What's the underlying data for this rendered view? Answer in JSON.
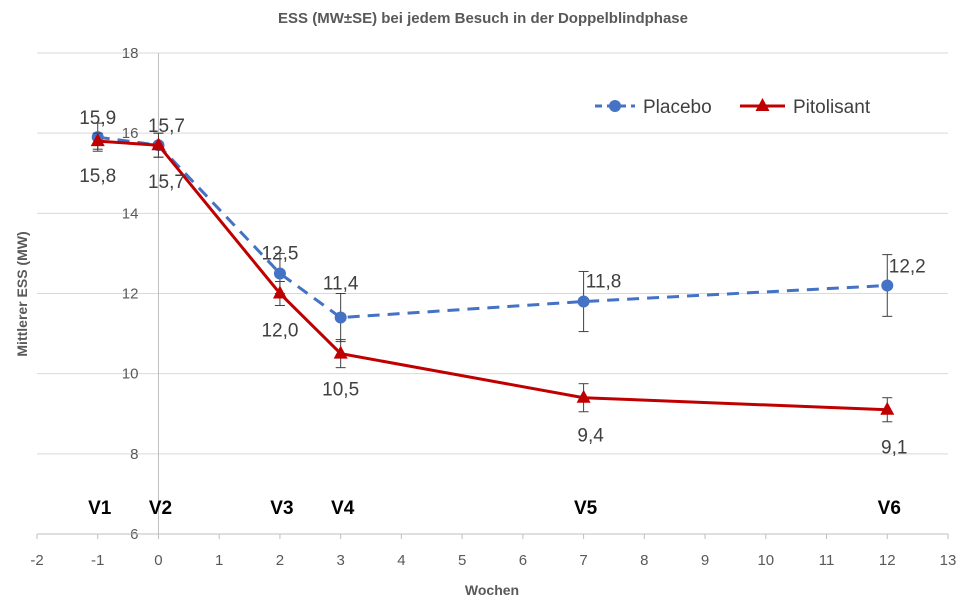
{
  "chart_data": {
    "type": "line",
    "title": "ESS (MW±SE) bei jedem Besuch in der Doppelblindphase",
    "xlabel": "Wochen",
    "ylabel": "Mittlerer ESS (MW)",
    "xlim": [
      -2,
      13
    ],
    "ylim": [
      6,
      18
    ],
    "xticks": [
      -2,
      -1,
      0,
      1,
      2,
      3,
      4,
      5,
      6,
      7,
      8,
      9,
      10,
      11,
      12,
      13
    ],
    "yticks": [
      6,
      8,
      10,
      12,
      14,
      16,
      18
    ],
    "grid": "horizontal",
    "legend_position": "top-right",
    "visits": [
      {
        "label": "V1",
        "x": -1
      },
      {
        "label": "V2",
        "x": 0
      },
      {
        "label": "V3",
        "x": 2
      },
      {
        "label": "V4",
        "x": 3
      },
      {
        "label": "V5",
        "x": 7
      },
      {
        "label": "V6",
        "x": 12
      }
    ],
    "x": [
      -1,
      0,
      2,
      3,
      7,
      12
    ],
    "series": [
      {
        "name": "Placebo",
        "color": "#4472C4",
        "style": "dashed",
        "marker": "circle",
        "values": [
          15.9,
          15.7,
          12.5,
          11.4,
          11.8,
          12.2
        ],
        "se": [
          0.35,
          0.3,
          0.5,
          0.6,
          0.75,
          0.77
        ],
        "labels": [
          "15,9",
          "15,7",
          "12,5",
          "11,4",
          "11,8",
          "12,2"
        ]
      },
      {
        "name": "Pitolisant",
        "color": "#C00000",
        "style": "solid",
        "marker": "triangle",
        "values": [
          15.8,
          15.7,
          12.0,
          10.5,
          9.4,
          9.1
        ],
        "se": [
          0.2,
          0.3,
          0.3,
          0.35,
          0.35,
          0.3
        ],
        "labels": [
          "15,8",
          "15,7",
          "12,0",
          "10,5",
          "9,4",
          "9,1"
        ]
      }
    ]
  }
}
